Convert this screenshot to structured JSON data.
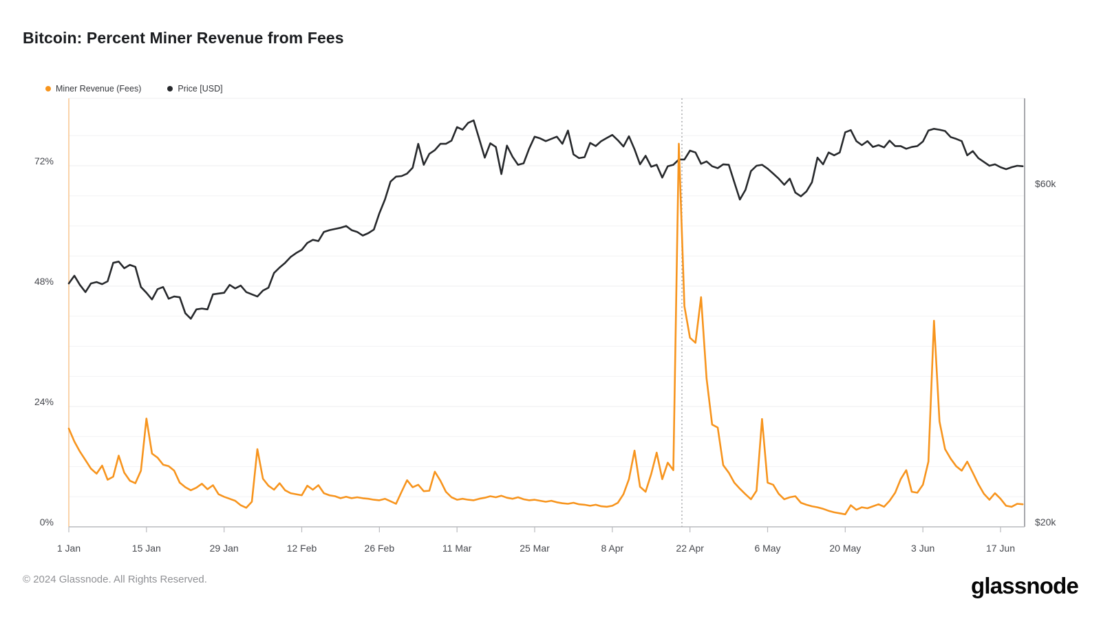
{
  "header": {
    "title": "Bitcoin: Percent Miner Revenue from Fees"
  },
  "legend": {
    "items": [
      {
        "label": "Miner Revenue (Fees)",
        "color": "#f7941d"
      },
      {
        "label": "Price [USD]",
        "color": "#26282b"
      }
    ]
  },
  "chart_data": {
    "type": "line",
    "title": "Bitcoin: Percent Miner Revenue from Fees",
    "x_axis": {
      "interval": "daily",
      "start": "1 Jan 2024",
      "tick_labels": [
        "1 Jan",
        "15 Jan",
        "29 Jan",
        "12 Feb",
        "26 Feb",
        "11 Mar",
        "25 Mar",
        "8 Apr",
        "22 Apr",
        "6 May",
        "20 May",
        "3 Jun",
        "17 Jun"
      ],
      "tick_days": [
        0,
        14,
        28,
        42,
        56,
        70,
        84,
        98,
        112,
        126,
        140,
        154,
        168
      ],
      "total_days": 172
    },
    "left_axis": {
      "name": "Miner Revenue from Fees",
      "unit": "%",
      "scale": "linear",
      "tick_labels": [
        "0%",
        "24%",
        "48%",
        "72%"
      ],
      "tick_values": [
        0,
        24,
        48,
        72
      ],
      "range": [
        0,
        85.4
      ],
      "grid_step_pct": 6
    },
    "right_axis": {
      "name": "Price",
      "unit": "USD",
      "scale": "log",
      "tick_labels": [
        "$20k",
        "$60k"
      ],
      "tick_values": [
        20,
        60
      ]
    },
    "annotations": {
      "halving_dotted_line_day": 110.55
    },
    "grid": "horizontal-only",
    "legend_position": "top-left",
    "series": [
      {
        "name": "Miner Revenue (Fees)",
        "axis": "left",
        "unit": "percent",
        "color": "#f7941d",
        "values": [
          19.6,
          17.0,
          15.0,
          13.3,
          11.6,
          10.6,
          12.2,
          9.4,
          10.0,
          14.2,
          10.8,
          9.2,
          8.7,
          11.2,
          21.6,
          14.6,
          13.8,
          12.4,
          12.1,
          11.2,
          8.8,
          7.9,
          7.3,
          7.8,
          8.6,
          7.5,
          8.3,
          6.5,
          6.0,
          5.6,
          5.2,
          4.3,
          3.8,
          5.0,
          15.5,
          9.6,
          8.2,
          7.4,
          8.7,
          7.3,
          6.7,
          6.5,
          6.3,
          8.2,
          7.4,
          8.3,
          6.7,
          6.3,
          6.1,
          5.7,
          6.0,
          5.7,
          5.9,
          5.7,
          5.6,
          5.4,
          5.3,
          5.6,
          5.1,
          4.6,
          7.0,
          9.3,
          7.9,
          8.4,
          7.1,
          7.2,
          11.0,
          9.2,
          7.0,
          5.9,
          5.4,
          5.6,
          5.4,
          5.3,
          5.6,
          5.8,
          6.1,
          5.9,
          6.2,
          5.8,
          5.6,
          5.9,
          5.5,
          5.3,
          5.4,
          5.2,
          5.0,
          5.2,
          4.9,
          4.7,
          4.6,
          4.8,
          4.5,
          4.4,
          4.2,
          4.4,
          4.1,
          4.0,
          4.2,
          4.8,
          6.5,
          9.5,
          15.2,
          8.0,
          7.0,
          10.5,
          14.8,
          9.5,
          12.8,
          11.3,
          76.4,
          44.0,
          37.7,
          36.7,
          45.8,
          29.6,
          20.4,
          19.8,
          12.3,
          10.8,
          8.8,
          7.6,
          6.5,
          5.5,
          7.2,
          21.5,
          8.8,
          8.4,
          6.6,
          5.5,
          5.9,
          6.1,
          4.8,
          4.4,
          4.1,
          3.9,
          3.6,
          3.2,
          2.9,
          2.7,
          2.5,
          4.3,
          3.4,
          3.9,
          3.7,
          4.1,
          4.5,
          4.0,
          5.2,
          6.8,
          9.5,
          11.3,
          7.0,
          6.8,
          8.4,
          13.0,
          41.1,
          21.0,
          15.5,
          13.6,
          12.1,
          11.2,
          13.0,
          10.8,
          8.5,
          6.6,
          5.4,
          6.7,
          5.6,
          4.2,
          4.0,
          4.6,
          4.5
        ]
      },
      {
        "name": "Price [USD]",
        "axis": "right",
        "unit": "USD thousands",
        "color": "#26282b",
        "values": [
          43.4,
          44.5,
          43.2,
          42.2,
          43.4,
          43.6,
          43.3,
          43.7,
          46.4,
          46.6,
          45.6,
          46.1,
          45.8,
          42.9,
          42.1,
          41.2,
          42.6,
          42.9,
          41.3,
          41.6,
          41.5,
          39.4,
          38.7,
          39.9,
          40.0,
          39.9,
          41.9,
          42.0,
          42.1,
          43.2,
          42.7,
          43.1,
          42.2,
          41.9,
          41.6,
          42.4,
          42.8,
          44.9,
          45.7,
          46.4,
          47.3,
          47.9,
          48.4,
          49.5,
          50.0,
          49.8,
          51.3,
          51.6,
          51.8,
          52.0,
          52.3,
          51.6,
          51.3,
          50.7,
          51.1,
          51.7,
          54.5,
          57.0,
          60.4,
          61.4,
          61.5,
          62.0,
          63.2,
          68.3,
          63.8,
          66.1,
          66.9,
          68.3,
          68.3,
          69.0,
          72.1,
          71.5,
          73.1,
          73.7,
          69.4,
          65.3,
          68.4,
          67.6,
          61.9,
          67.9,
          65.5,
          63.8,
          64.1,
          67.2,
          69.9,
          69.5,
          68.9,
          69.4,
          69.9,
          68.3,
          71.3,
          66.0,
          65.2,
          65.4,
          68.5,
          67.8,
          68.9,
          69.6,
          70.3,
          69.1,
          67.7,
          70.0,
          67.1,
          63.9,
          65.7,
          63.4,
          63.8,
          61.2,
          63.5,
          63.8,
          64.9,
          64.9,
          66.8,
          66.4,
          64.0,
          64.5,
          63.5,
          63.1,
          63.9,
          63.8,
          60.3,
          57.0,
          58.8,
          62.5,
          63.6,
          63.8,
          63.0,
          62.0,
          61.0,
          59.8,
          61.0,
          58.3,
          57.6,
          58.5,
          60.3,
          65.3,
          63.9,
          66.4,
          65.8,
          66.4,
          70.9,
          71.4,
          68.9,
          68.0,
          68.9,
          67.6,
          68.0,
          67.5,
          69.0,
          67.8,
          67.8,
          67.2,
          67.6,
          67.8,
          68.8,
          71.3,
          71.7,
          71.5,
          71.2,
          69.8,
          69.4,
          68.9,
          65.8,
          66.7,
          65.2,
          64.4,
          63.6,
          63.9,
          63.3,
          62.9,
          63.3,
          63.6,
          63.5
        ]
      }
    ],
    "colors": {
      "grid_minor": "#f2f2f4",
      "grid_major": "#ececef",
      "left_border": "#f8c895",
      "right_border": "#a6a7ab",
      "bottom_axis": "#b9babe",
      "dotted_line": "#9ea0a3",
      "axis_text": "#45474d"
    }
  },
  "footer": {
    "copyright": "© 2024 Glassnode. All Rights Reserved.",
    "logo": "glassnode"
  }
}
